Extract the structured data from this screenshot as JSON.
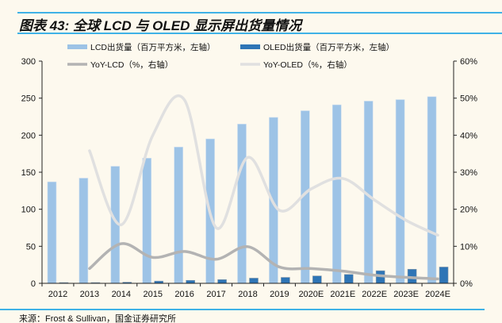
{
  "title": "图表 43: 全球 LCD 与 OLED 显示屏出货量情况",
  "source": "来源：Frost & Sullivan，国金证券研究所",
  "chart_data": {
    "type": "bar+line",
    "categories": [
      "2012",
      "2013",
      "2014",
      "2015",
      "2016",
      "2017",
      "2018",
      "2019",
      "2020E",
      "2021E",
      "2022E",
      "2023E",
      "2024E"
    ],
    "series": [
      {
        "name": "LCD出货量（百万平方米，左轴）",
        "kind": "bar",
        "axis": "left",
        "color": "#9dc3e6",
        "values": [
          137,
          142,
          158,
          169,
          184,
          195,
          215,
          224,
          233,
          241,
          246,
          248,
          252
        ]
      },
      {
        "name": "OLED出货量（百万平方米，左轴）",
        "kind": "bar",
        "axis": "left",
        "color": "#2e75b6",
        "values": [
          1,
          1,
          1.5,
          3,
          4,
          5,
          7,
          8,
          10,
          12,
          17,
          19,
          22
        ]
      },
      {
        "name": "YoY-LCD（%，右轴）",
        "kind": "line",
        "axis": "right",
        "color": "#b3b3b3",
        "values": [
          null,
          4,
          10.7,
          7,
          8.6,
          6.5,
          9.9,
          4.4,
          4,
          3.3,
          2.2,
          1.6,
          1.2
        ]
      },
      {
        "name": "YoY-OLED（%，右轴）",
        "kind": "line",
        "axis": "right",
        "color": "#e0e0e0",
        "values": [
          null,
          35.8,
          15.8,
          40,
          49.5,
          15,
          34,
          19.7,
          25.5,
          28.3,
          22.5,
          17,
          13
        ]
      }
    ],
    "left_axis": {
      "ylim": [
        0,
        300
      ],
      "ticks": [
        "0",
        "50",
        "100",
        "150",
        "200",
        "250",
        "300"
      ]
    },
    "right_axis": {
      "ylim": [
        0,
        60
      ],
      "ticks": [
        "0%",
        "10%",
        "20%",
        "30%",
        "40%",
        "50%",
        "60%"
      ]
    },
    "legend": "top",
    "grid": false
  }
}
